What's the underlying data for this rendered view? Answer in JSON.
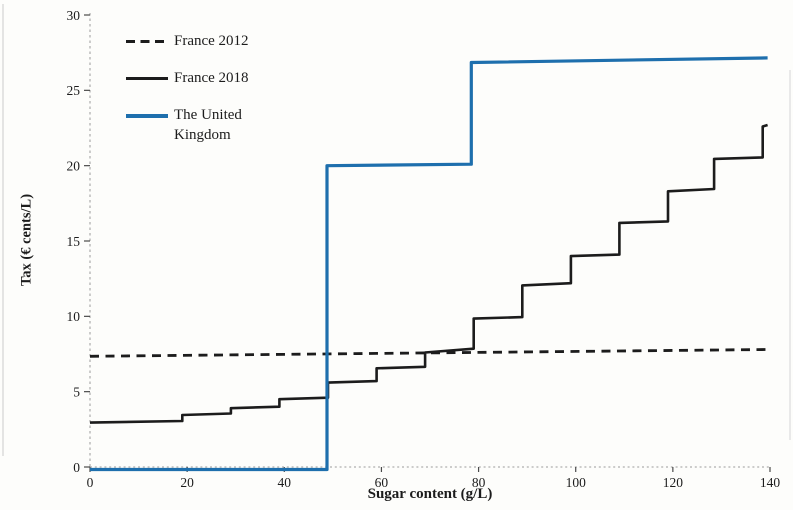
{
  "colors": {
    "background": "#fdfdfb",
    "axis": "#9b9b9b",
    "tick_mark": "#4a4a4a",
    "black_line": "#1c1c1c",
    "blue_line": "#1e6fad"
  },
  "chart_data": {
    "type": "line",
    "title": "",
    "xlabel": "Sugar content (g/L)",
    "ylabel": "Tax (€ cents/L)",
    "xlim": [
      0,
      140
    ],
    "ylim": [
      0,
      30
    ],
    "x_ticks": [
      0,
      20,
      40,
      60,
      80,
      100,
      120,
      140
    ],
    "y_ticks": [
      0,
      5,
      10,
      15,
      20,
      25,
      30
    ],
    "grid": false,
    "legend_position": "top-left-inside",
    "series": [
      {
        "name": "France 2012",
        "line_style": "dashed",
        "color": "#1c1c1c",
        "description": "Flat tax of about 7.5 € cents/L at all sugar contents",
        "points": [
          [
            0,
            7.35
          ],
          [
            139.5,
            7.8
          ]
        ]
      },
      {
        "name": "France 2018",
        "line_style": "solid",
        "color": "#1c1c1c",
        "description": "Stepwise tax rising roughly every 10 g/L from 3 to 22.7 € cents/L",
        "points": [
          [
            0,
            2.95
          ],
          [
            19,
            3.05
          ],
          [
            19,
            3.45
          ],
          [
            29,
            3.55
          ],
          [
            29,
            3.9
          ],
          [
            39,
            4.0
          ],
          [
            39,
            4.5
          ],
          [
            49,
            4.6
          ],
          [
            49,
            5.6
          ],
          [
            59,
            5.7
          ],
          [
            59,
            6.55
          ],
          [
            69,
            6.65
          ],
          [
            69,
            7.6
          ],
          [
            79,
            7.85
          ],
          [
            79,
            9.85
          ],
          [
            89,
            9.95
          ],
          [
            89,
            12.05
          ],
          [
            99,
            12.2
          ],
          [
            99,
            14.0
          ],
          [
            109,
            14.1
          ],
          [
            109,
            16.2
          ],
          [
            119,
            16.3
          ],
          [
            119,
            18.3
          ],
          [
            128.5,
            18.45
          ],
          [
            128.5,
            20.45
          ],
          [
            138.5,
            20.55
          ],
          [
            138.5,
            22.6
          ],
          [
            139.5,
            22.7
          ]
        ]
      },
      {
        "name": "The United Kingdom",
        "line_style": "solid",
        "color": "#1e6fad",
        "description": "0 below 50 g/L, about 20 € cents/L from 50 to 80 g/L, about 27 € cents/L above 80 g/L",
        "points": [
          [
            0,
            0
          ],
          [
            48.8,
            0
          ],
          [
            48.8,
            20.0
          ],
          [
            78.5,
            20.1
          ],
          [
            78.5,
            26.85
          ],
          [
            139.5,
            27.15
          ]
        ]
      }
    ]
  }
}
